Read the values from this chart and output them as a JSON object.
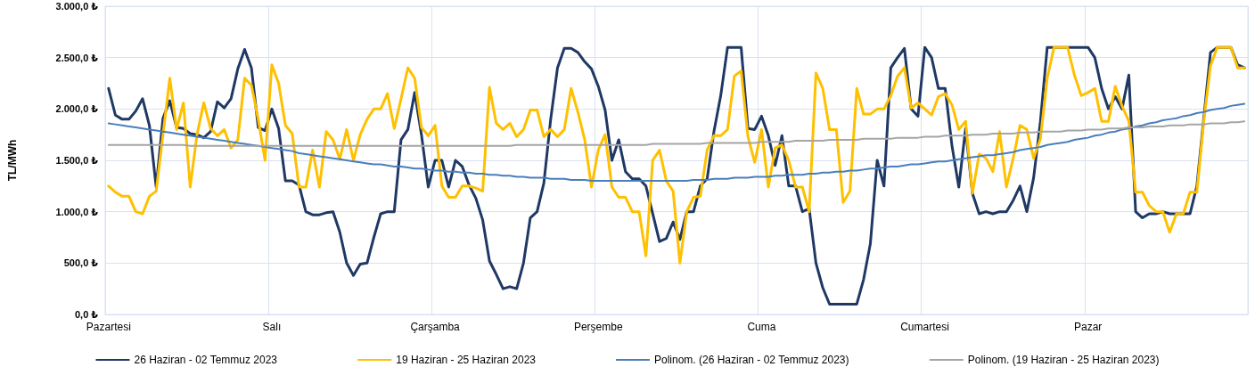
{
  "chart_data": {
    "type": "line",
    "ylabel": "TL/MWh",
    "legend": "bottom",
    "grid": true,
    "marker": "none",
    "categories": [
      "Pazartesi",
      null,
      null,
      null,
      null,
      null,
      null,
      null,
      null,
      null,
      null,
      null,
      null,
      null,
      null,
      null,
      null,
      null,
      null,
      null,
      null,
      null,
      null,
      null,
      "Salı",
      null,
      null,
      null,
      null,
      null,
      null,
      null,
      null,
      null,
      null,
      null,
      null,
      null,
      null,
      null,
      null,
      null,
      null,
      null,
      null,
      null,
      null,
      null,
      "Çarşamba",
      null,
      null,
      null,
      null,
      null,
      null,
      null,
      null,
      null,
      null,
      null,
      null,
      null,
      null,
      null,
      null,
      null,
      null,
      null,
      null,
      null,
      null,
      null,
      "Perşembe",
      null,
      null,
      null,
      null,
      null,
      null,
      null,
      null,
      null,
      null,
      null,
      null,
      null,
      null,
      null,
      null,
      null,
      null,
      null,
      null,
      null,
      null,
      null,
      "Cuma",
      null,
      null,
      null,
      null,
      null,
      null,
      null,
      null,
      null,
      null,
      null,
      null,
      null,
      null,
      null,
      null,
      null,
      null,
      null,
      null,
      null,
      null,
      null,
      "Cumartesi",
      null,
      null,
      null,
      null,
      null,
      null,
      null,
      null,
      null,
      null,
      null,
      null,
      null,
      null,
      null,
      null,
      null,
      null,
      null,
      null,
      null,
      null,
      null,
      "Pazar",
      null,
      null,
      null,
      null,
      null,
      null,
      null,
      null,
      null,
      null,
      null,
      null,
      null,
      null,
      null,
      null,
      null,
      null,
      null,
      null,
      null,
      null,
      null
    ],
    "ylim": [
      0,
      3000
    ],
    "yticks": [
      {
        "value": 0,
        "label": "0,0 ₺"
      },
      {
        "value": 500,
        "label": "500,0 ₺"
      },
      {
        "value": 1000,
        "label": "1.000,0 ₺"
      },
      {
        "value": 1500,
        "label": "1.500,0 ₺"
      },
      {
        "value": 2000,
        "label": "2.000,0 ₺"
      },
      {
        "value": 2500,
        "label": "2.500,0 ₺"
      },
      {
        "value": 3000,
        "label": "3.000,0 ₺"
      }
    ],
    "series": [
      {
        "name": "26 Haziran - 02 Temmuz 2023",
        "color": "#1f3864",
        "values": [
          2200,
          1940,
          1900,
          1900,
          1980,
          2100,
          1840,
          1240,
          1910,
          2080,
          1820,
          1810,
          1760,
          1750,
          1720,
          1780,
          2070,
          2010,
          2100,
          2390,
          2580,
          2400,
          1820,
          1790,
          2000,
          1810,
          1300,
          1300,
          1260,
          1000,
          970,
          970,
          990,
          1000,
          800,
          500,
          380,
          490,
          500,
          750,
          980,
          1000,
          1000,
          1700,
          1800,
          2160,
          1750,
          1240,
          1500,
          1500,
          1240,
          1500,
          1440,
          1260,
          1130,
          920,
          520,
          390,
          250,
          270,
          250,
          500,
          940,
          1000,
          1280,
          1900,
          2400,
          2590,
          2590,
          2550,
          2460,
          2390,
          2220,
          1990,
          1500,
          1700,
          1390,
          1320,
          1320,
          1250,
          980,
          710,
          740,
          900,
          730,
          1000,
          1000,
          1250,
          1320,
          1780,
          2130,
          2600,
          2600,
          2600,
          1810,
          1800,
          1930,
          1740,
          1450,
          1740,
          1250,
          1250,
          1000,
          1030,
          500,
          260,
          100,
          100,
          100,
          100,
          100,
          340,
          690,
          1500,
          1250,
          2400,
          2500,
          2590,
          2000,
          1930,
          2600,
          2500,
          2200,
          2200,
          1640,
          1240,
          1810,
          1180,
          980,
          1000,
          980,
          1000,
          1000,
          1110,
          1250,
          1000,
          1330,
          1880,
          2600,
          2600,
          2600,
          2600,
          2600,
          2600,
          2600,
          2500,
          2200,
          2000,
          2120,
          2000,
          2330,
          1000,
          940,
          980,
          980,
          1000,
          980,
          980,
          980,
          980,
          1250,
          1900,
          2550,
          2600,
          2600,
          2600,
          2430,
          2400
        ]
      },
      {
        "name": "19 Haziran - 25 Haziran 2023",
        "color": "#ffc000",
        "values": [
          1250,
          1190,
          1150,
          1150,
          1000,
          980,
          1150,
          1200,
          1750,
          2300,
          1800,
          2060,
          1240,
          1750,
          2060,
          1810,
          1740,
          1800,
          1620,
          1700,
          2300,
          2230,
          1900,
          1500,
          2430,
          2250,
          1840,
          1760,
          1240,
          1240,
          1600,
          1240,
          1780,
          1700,
          1510,
          1800,
          1500,
          1750,
          1900,
          2000,
          2000,
          2150,
          1810,
          2100,
          2400,
          2300,
          1820,
          1740,
          1840,
          1250,
          1140,
          1140,
          1250,
          1250,
          1230,
          1200,
          2210,
          1860,
          1800,
          1860,
          1730,
          1800,
          1990,
          1990,
          1730,
          1800,
          1730,
          1800,
          2200,
          1970,
          1700,
          1240,
          1600,
          1750,
          1240,
          1140,
          1140,
          1000,
          1000,
          570,
          1500,
          1600,
          1300,
          1200,
          500,
          1000,
          1140,
          1150,
          1600,
          1740,
          1740,
          1800,
          2320,
          2370,
          1730,
          1480,
          1800,
          1240,
          1620,
          1650,
          1500,
          1240,
          1240,
          1000,
          2350,
          2200,
          1800,
          1800,
          1090,
          1200,
          2200,
          1950,
          1950,
          2000,
          2000,
          2130,
          2320,
          2400,
          2010,
          2060,
          2000,
          1940,
          2120,
          2150,
          2040,
          1800,
          1880,
          1180,
          1560,
          1520,
          1390,
          1780,
          1240,
          1520,
          1840,
          1800,
          1520,
          1710,
          2300,
          2600,
          2600,
          2600,
          2330,
          2130,
          2160,
          2200,
          1880,
          1880,
          2220,
          2030,
          1880,
          1190,
          1190,
          1060,
          1000,
          1000,
          800,
          980,
          980,
          1190,
          1190,
          1870,
          2420,
          2600,
          2600,
          2600,
          2400,
          2400
        ]
      },
      {
        "name": "Polinom. (26 Haziran - 02 Temmuz 2023)",
        "color": "#4a7ebb",
        "values": [
          1860,
          1850,
          1840,
          1830,
          1820,
          1810,
          1800,
          1790,
          1780,
          1770,
          1760,
          1750,
          1740,
          1730,
          1720,
          1710,
          1700,
          1690,
          1680,
          1670,
          1660,
          1650,
          1640,
          1630,
          1620,
          1610,
          1600,
          1590,
          1570,
          1560,
          1550,
          1540,
          1530,
          1520,
          1510,
          1500,
          1490,
          1480,
          1470,
          1460,
          1460,
          1450,
          1440,
          1440,
          1430,
          1420,
          1420,
          1410,
          1400,
          1400,
          1390,
          1390,
          1380,
          1380,
          1370,
          1370,
          1360,
          1360,
          1350,
          1350,
          1340,
          1340,
          1330,
          1330,
          1330,
          1320,
          1320,
          1320,
          1310,
          1310,
          1310,
          1300,
          1300,
          1300,
          1300,
          1300,
          1300,
          1300,
          1300,
          1300,
          1300,
          1300,
          1300,
          1300,
          1300,
          1300,
          1310,
          1310,
          1310,
          1320,
          1320,
          1320,
          1330,
          1330,
          1330,
          1340,
          1340,
          1340,
          1350,
          1350,
          1360,
          1360,
          1360,
          1370,
          1370,
          1380,
          1380,
          1390,
          1390,
          1400,
          1400,
          1410,
          1420,
          1420,
          1430,
          1440,
          1440,
          1450,
          1460,
          1460,
          1470,
          1480,
          1490,
          1490,
          1500,
          1510,
          1520,
          1530,
          1540,
          1550,
          1550,
          1560,
          1570,
          1580,
          1600,
          1610,
          1620,
          1630,
          1650,
          1660,
          1670,
          1680,
          1700,
          1710,
          1720,
          1740,
          1750,
          1770,
          1780,
          1800,
          1810,
          1830,
          1840,
          1860,
          1870,
          1890,
          1900,
          1910,
          1930,
          1940,
          1960,
          1970,
          1990,
          2000,
          2010,
          2030,
          2040,
          2050
        ]
      },
      {
        "name": "Polinom. (19 Haziran - 25 Haziran 2023)",
        "color": "#a5a5a5",
        "values": [
          1650,
          1650,
          1650,
          1650,
          1650,
          1650,
          1650,
          1650,
          1650,
          1650,
          1650,
          1650,
          1640,
          1640,
          1640,
          1640,
          1640,
          1640,
          1640,
          1640,
          1640,
          1640,
          1640,
          1640,
          1640,
          1640,
          1640,
          1640,
          1640,
          1640,
          1640,
          1640,
          1640,
          1640,
          1640,
          1640,
          1640,
          1640,
          1640,
          1640,
          1640,
          1640,
          1640,
          1640,
          1640,
          1640,
          1640,
          1640,
          1640,
          1640,
          1640,
          1640,
          1640,
          1640,
          1640,
          1640,
          1640,
          1640,
          1640,
          1640,
          1650,
          1650,
          1650,
          1650,
          1650,
          1650,
          1650,
          1650,
          1650,
          1650,
          1650,
          1650,
          1650,
          1650,
          1650,
          1650,
          1650,
          1650,
          1650,
          1650,
          1660,
          1660,
          1660,
          1660,
          1660,
          1660,
          1660,
          1660,
          1670,
          1670,
          1670,
          1670,
          1670,
          1670,
          1670,
          1670,
          1680,
          1680,
          1680,
          1680,
          1680,
          1690,
          1690,
          1690,
          1690,
          1690,
          1700,
          1700,
          1700,
          1700,
          1700,
          1710,
          1710,
          1710,
          1710,
          1710,
          1720,
          1720,
          1720,
          1720,
          1730,
          1730,
          1730,
          1740,
          1740,
          1740,
          1740,
          1750,
          1750,
          1750,
          1760,
          1760,
          1760,
          1760,
          1770,
          1770,
          1770,
          1780,
          1780,
          1780,
          1780,
          1790,
          1790,
          1790,
          1800,
          1800,
          1800,
          1810,
          1810,
          1810,
          1820,
          1820,
          1820,
          1830,
          1830,
          1830,
          1840,
          1840,
          1840,
          1850,
          1850,
          1850,
          1860,
          1860,
          1860,
          1870,
          1870,
          1880
        ]
      }
    ]
  }
}
